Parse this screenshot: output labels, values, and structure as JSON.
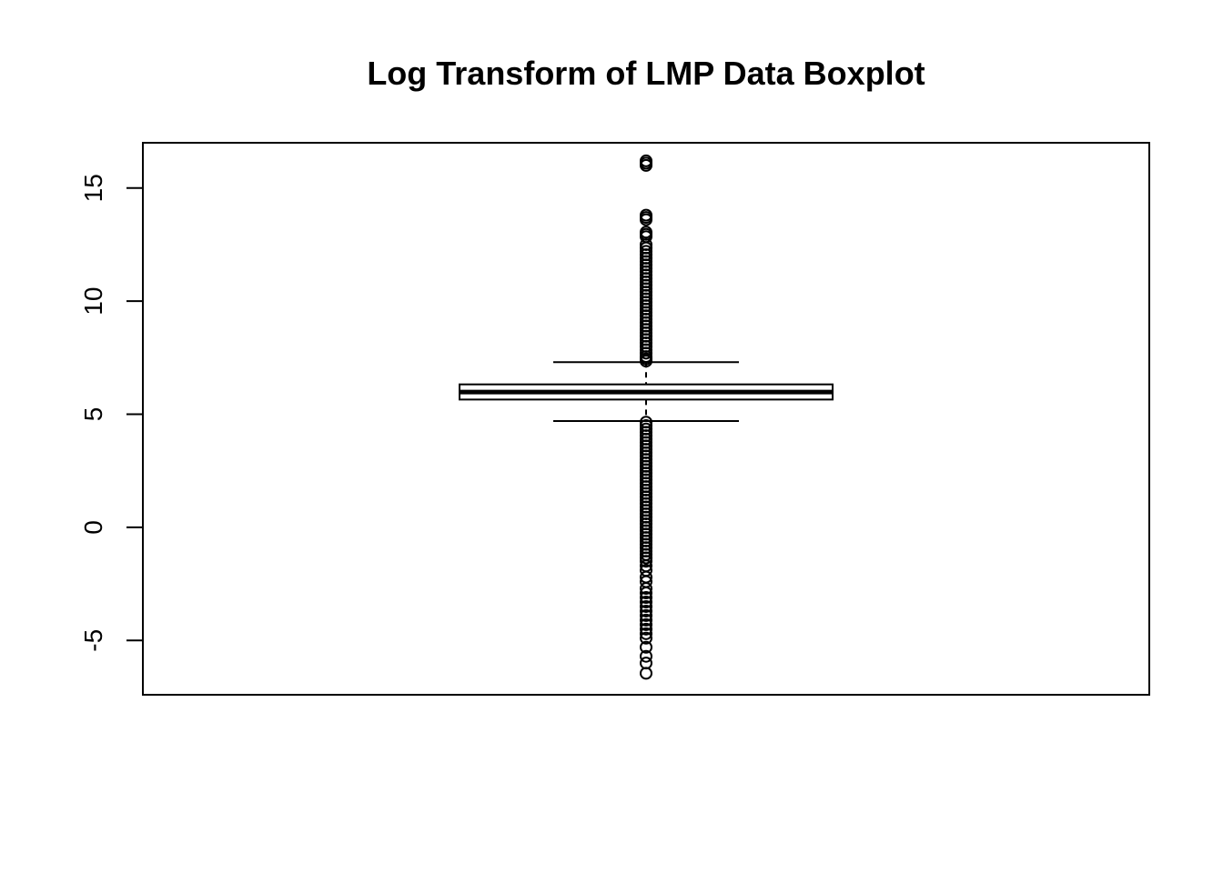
{
  "chart_data": {
    "type": "boxplot",
    "title": "Log Transform of LMP Data Boxplot",
    "xlabel": "",
    "ylabel": "",
    "ylim": [
      -7.4,
      17.0
    ],
    "y_ticks": [
      -5,
      0,
      5,
      10,
      15
    ],
    "y_tick_labels": [
      "-5",
      "0",
      "5",
      "10",
      "15"
    ],
    "grid": false,
    "legend": "none",
    "box": {
      "lower_whisker": 4.7,
      "q1": 5.65,
      "median": 5.98,
      "q3": 6.32,
      "upper_whisker": 7.3
    },
    "outliers_high": [
      7.35,
      7.45,
      7.55,
      7.7,
      7.85,
      8.0,
      8.15,
      8.3,
      8.45,
      8.6,
      8.75,
      8.9,
      9.05,
      9.2,
      9.35,
      9.5,
      9.65,
      9.8,
      9.95,
      10.1,
      10.25,
      10.4,
      10.55,
      10.7,
      10.85,
      11.0,
      11.15,
      11.3,
      11.45,
      11.6,
      11.75,
      11.9,
      12.05,
      12.2,
      12.35,
      12.5,
      12.85,
      12.95,
      13.05,
      13.6,
      13.7,
      13.8,
      16.0,
      16.1,
      16.2
    ],
    "outliers_low": [
      4.65,
      4.5,
      4.35,
      4.2,
      4.05,
      3.9,
      3.75,
      3.6,
      3.45,
      3.3,
      3.15,
      3.0,
      2.85,
      2.7,
      2.55,
      2.4,
      2.25,
      2.1,
      1.95,
      1.8,
      1.65,
      1.5,
      1.35,
      1.2,
      1.05,
      0.9,
      0.75,
      0.6,
      0.45,
      0.3,
      0.15,
      0.0,
      -0.15,
      -0.3,
      -0.45,
      -0.6,
      -0.75,
      -0.9,
      -1.05,
      -1.2,
      -1.35,
      -1.5,
      -1.7,
      -1.9,
      -2.2,
      -2.4,
      -2.7,
      -2.9,
      -3.1,
      -3.3,
      -3.5,
      -3.7,
      -3.9,
      -4.1,
      -4.3,
      -4.5,
      -4.7,
      -4.9,
      -5.3,
      -5.7,
      -6.0,
      -6.45
    ]
  }
}
